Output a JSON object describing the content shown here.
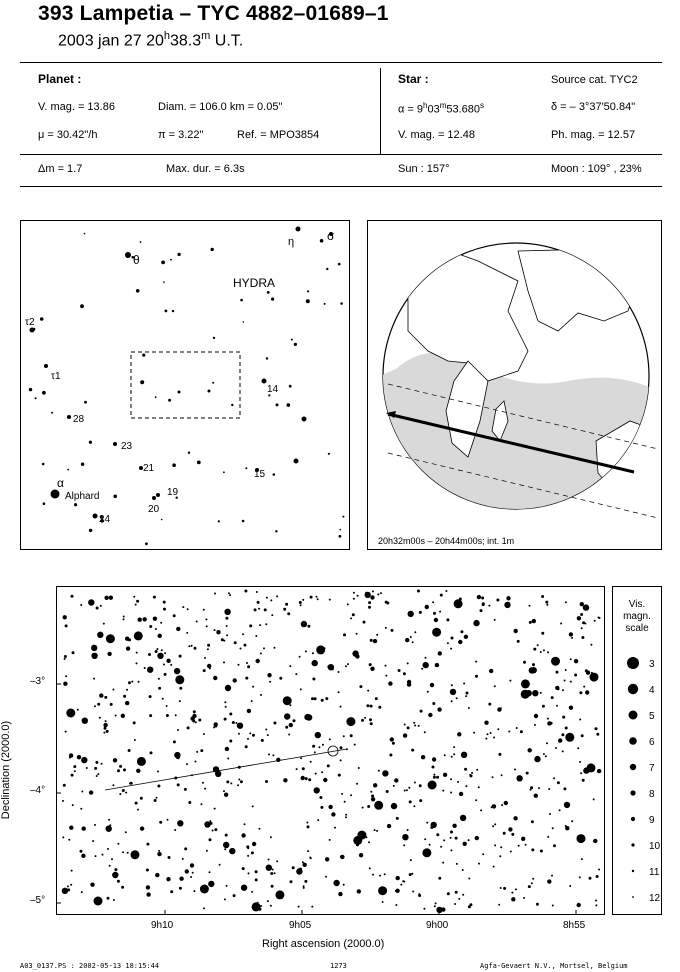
{
  "header": {
    "title": "393 Lampetia  –  TYC 4882–01689–1",
    "date_prefix": "2003 jan 27  20",
    "date_h": "h",
    "date_mid": "38.3",
    "date_m": "m",
    "date_suffix": " U.T."
  },
  "planet": {
    "heading": "Planet :",
    "vmag": "V. mag. = 13.86",
    "diam": "Diam. = 106.0 km = 0.05\"",
    "mu": "μ = 30.42\"/h",
    "pi": "π = 3.22\"",
    "ref": "Ref. = MPO3854"
  },
  "star": {
    "heading": "Star :",
    "source": "Source cat.  TYC2",
    "alpha_prefix": "α = 9",
    "alpha_h": "h",
    "alpha_mid": "03",
    "alpha_m": "m",
    "alpha_s": "53.680",
    "alpha_sup": "s",
    "delta": "δ = – 3°37'50.84\"",
    "vmag": "V. mag. = 12.48",
    "phmag": "Ph. mag. = 12.57"
  },
  "summary": {
    "dm": "Δm = 1.7",
    "maxdur": "Max. dur. = 6.3s",
    "sun": "Sun : 157°",
    "moon": "Moon : 109° , 23%"
  },
  "finder": {
    "constellation": "HYDRA",
    "labels": [
      "η",
      "σ",
      "θ",
      "τ2",
      "τ1",
      "28",
      "23",
      "21",
      "14",
      "15",
      "19",
      "20",
      "24",
      "α",
      "Alphard"
    ]
  },
  "globe": {
    "caption": "20h32m00s – 20h44m00s; int.  1m"
  },
  "chart": {
    "ylabel": "Declination (2000.0)",
    "xlabel": "Right ascension (2000.0)",
    "yticks": [
      "–3°",
      "–4°",
      "–5°"
    ],
    "xticks": [
      "9h10",
      "9h05",
      "9h00",
      "8h55"
    ]
  },
  "scale": {
    "title": [
      "Vis.",
      "magn.",
      "scale"
    ],
    "mags": [
      "3",
      "4",
      "5",
      "6",
      "7",
      "8",
      "9",
      "10",
      "11",
      "12"
    ]
  },
  "footer": {
    "left": "A03_0137.PS : 2002-05-13 18:15:44",
    "center": "1273",
    "right": "Agfa-Gevaert N.V., Mortsel, Belgium"
  }
}
